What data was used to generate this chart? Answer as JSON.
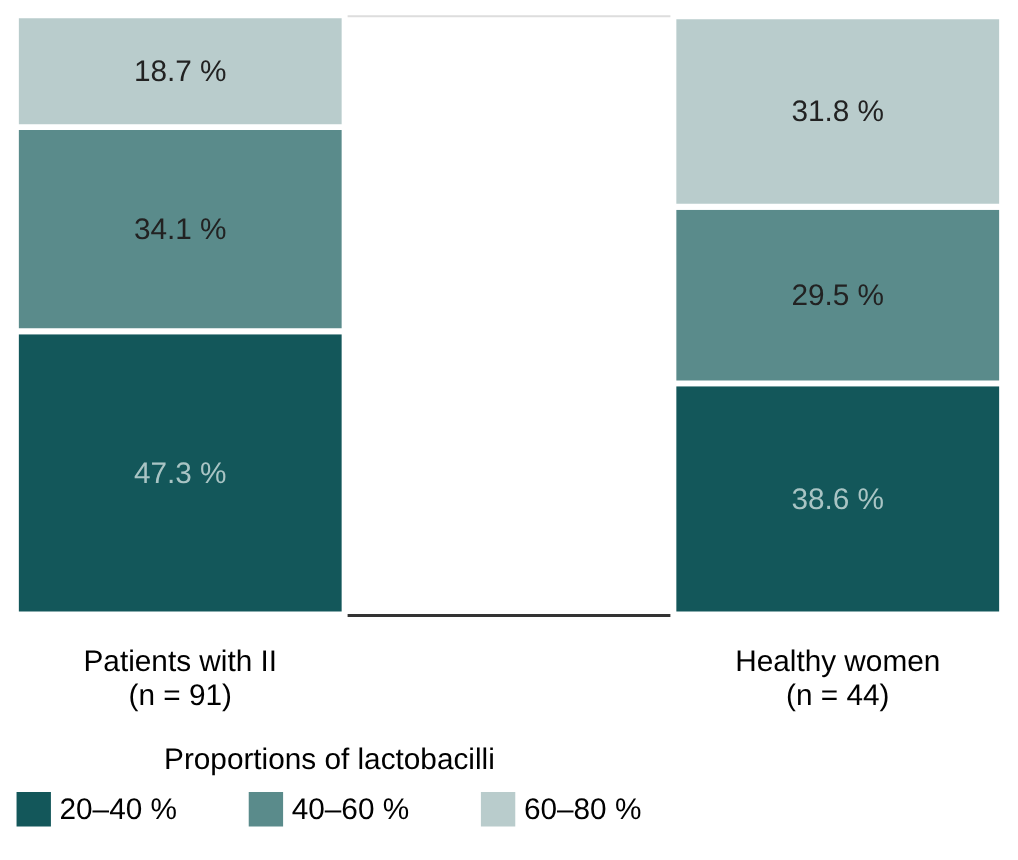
{
  "chart_data": {
    "type": "bar",
    "stacked": true,
    "categories": [
      "Patients with II\n(n = 91)",
      "Healthy women\n(n = 44)"
    ],
    "legend_title": "Proportions of lactobacilli",
    "legend": "bottom",
    "grid": false,
    "tick_labels": "x",
    "series": [
      {
        "name": "20–40 %",
        "color": "#13575a",
        "values": [
          47.3,
          38.6
        ],
        "value_labels": [
          "47.3 %",
          "38.6 %"
        ]
      },
      {
        "name": "40–60 %",
        "color": "#5a8b8b",
        "values": [
          34.1,
          29.5
        ],
        "value_labels": [
          "34.1 %",
          "29.5 %"
        ]
      },
      {
        "name": "60–80 %",
        "color": "#b9cccc",
        "values": [
          18.7,
          31.8
        ],
        "value_labels": [
          "18.7 %",
          "31.8 %"
        ]
      }
    ]
  }
}
